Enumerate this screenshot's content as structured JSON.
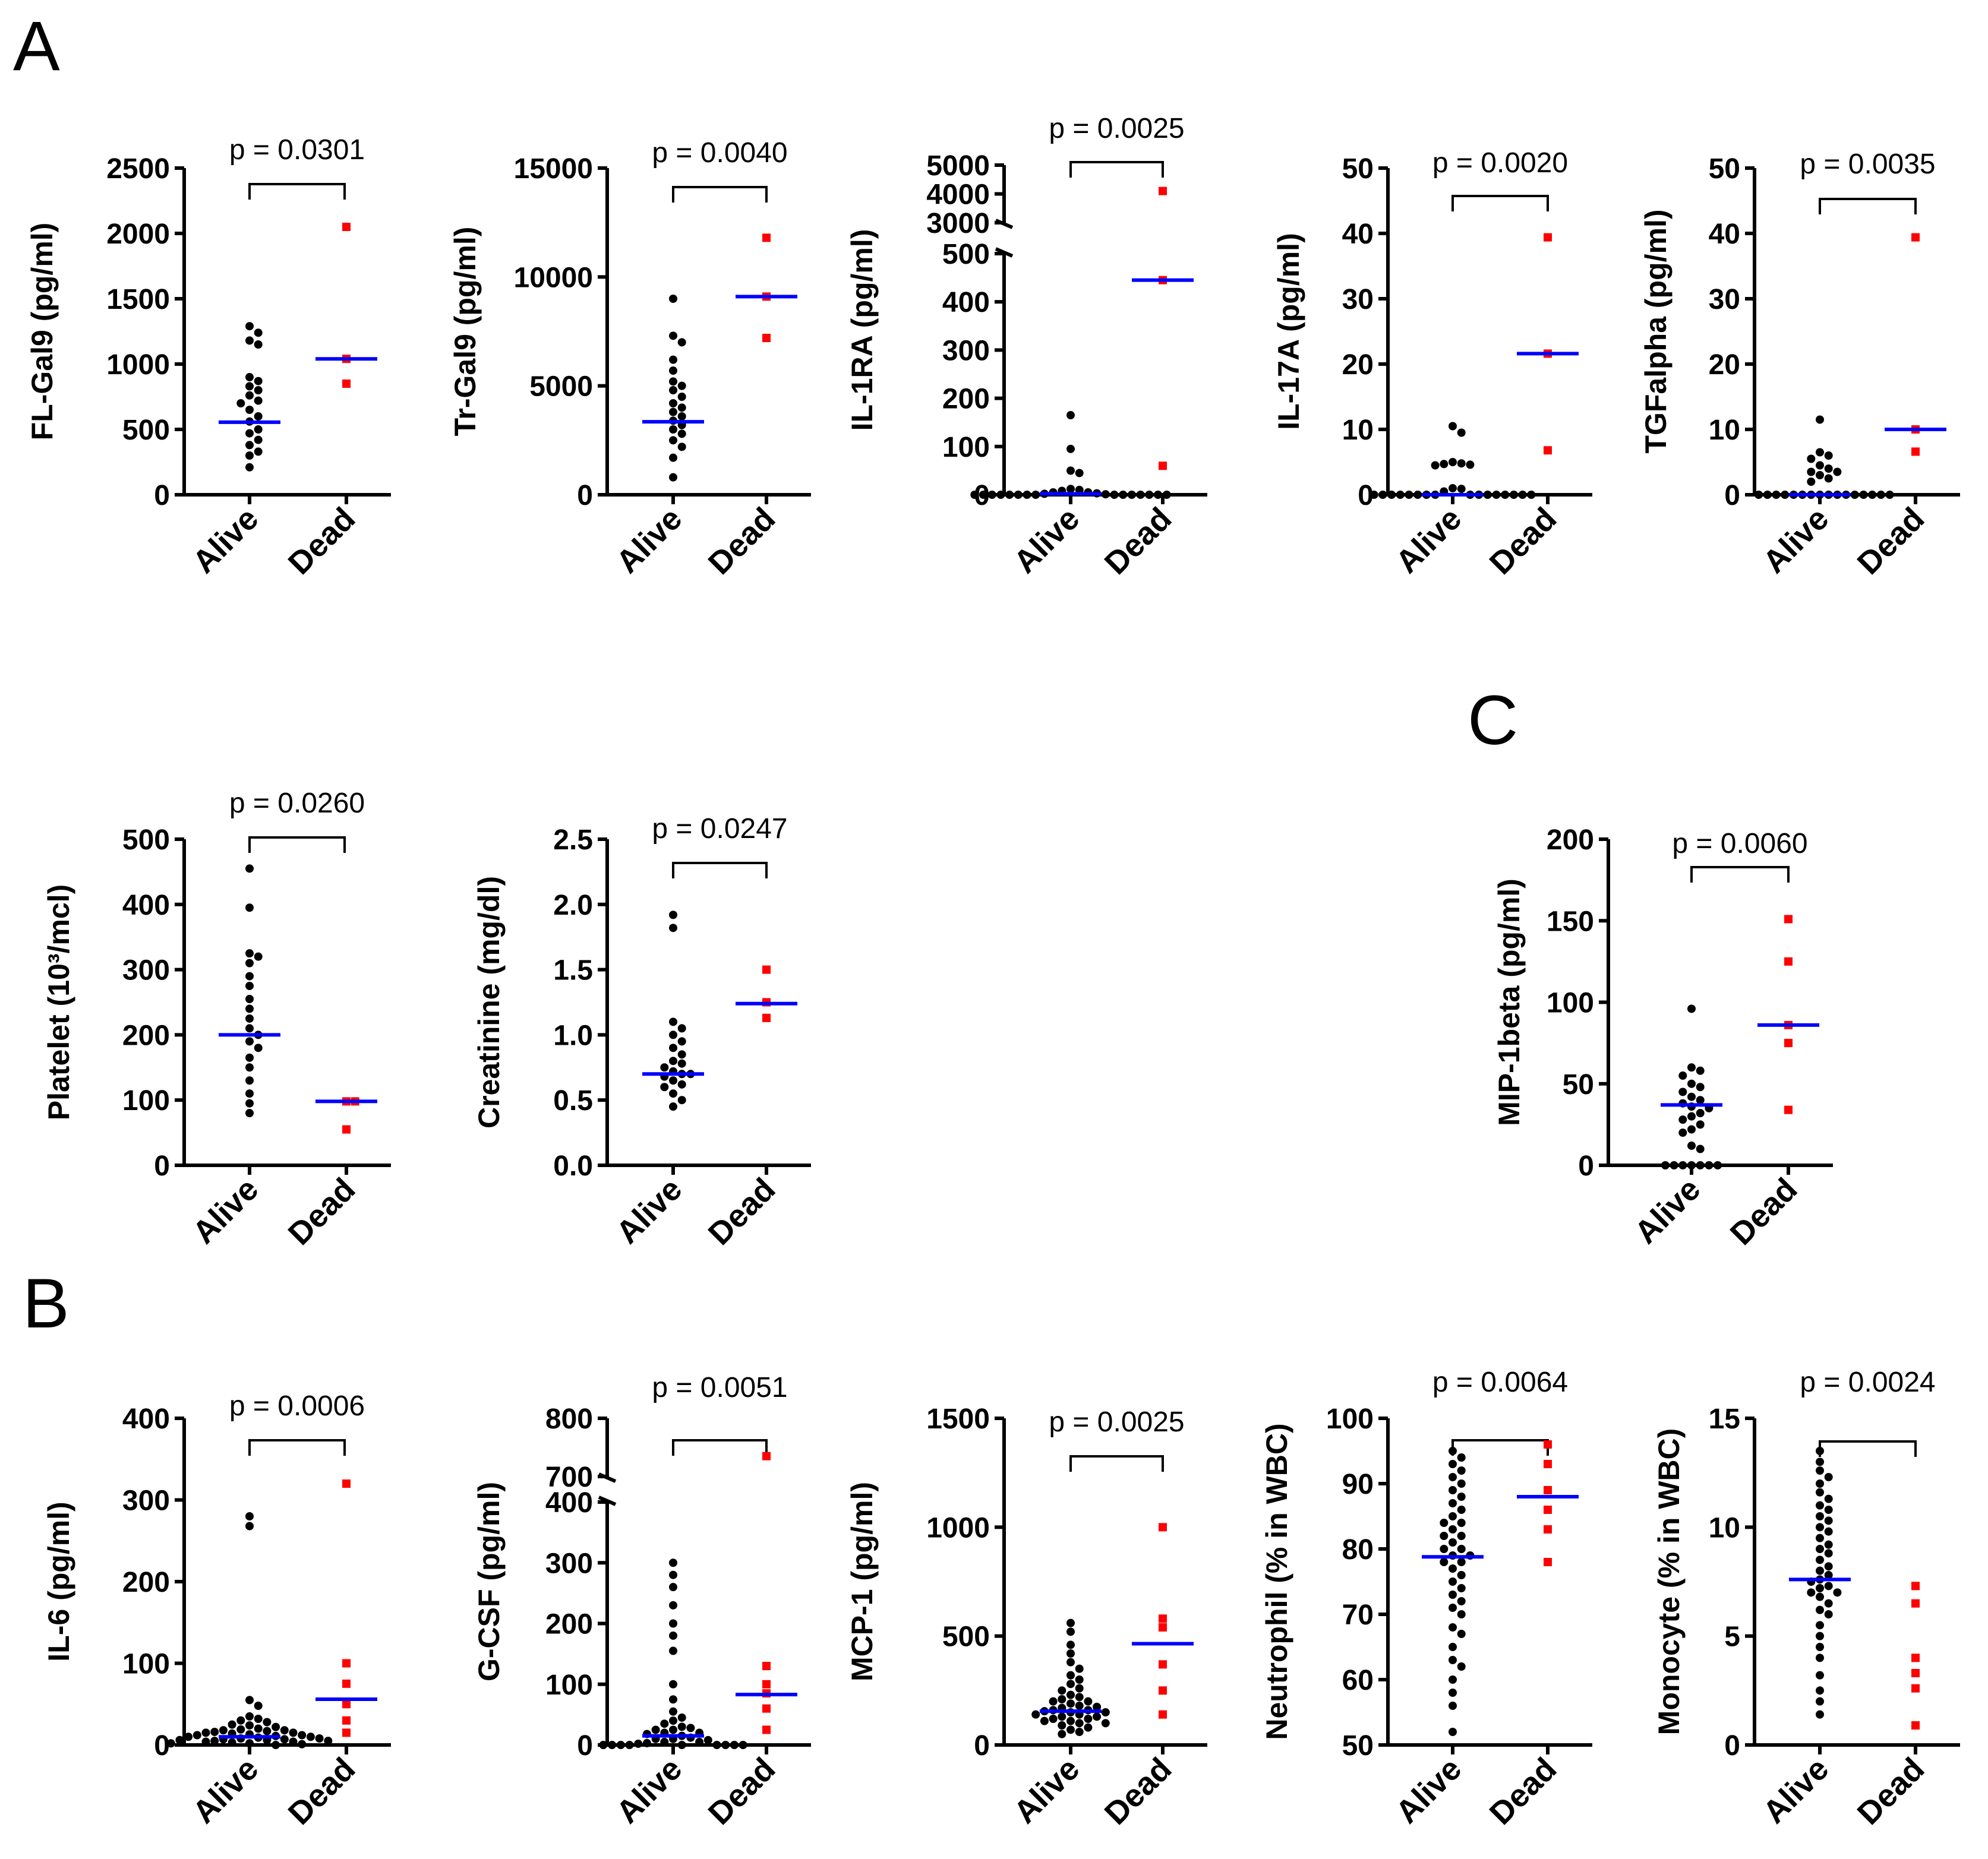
{
  "figure": {
    "panel_labels": [
      "A",
      "B",
      "C"
    ],
    "categories": [
      "Alive",
      "Dead"
    ],
    "colors": {
      "alive": "#000000",
      "dead": "#ff0000",
      "median": "#0000ff"
    }
  },
  "chart_data": [
    {
      "type": "scatter",
      "panel": "A",
      "ylabel": "FL-Gal9 (pg/ml)",
      "ylim": [
        0,
        2500
      ],
      "yticks": [
        0,
        500,
        1000,
        1500,
        2000,
        2500
      ],
      "p_text": "p = 0.0301",
      "alive": [
        210,
        300,
        330,
        380,
        420,
        470,
        500,
        560,
        600,
        650,
        700,
        720,
        760,
        800,
        830,
        870,
        900,
        1150,
        1180,
        1240,
        1290
      ],
      "dead": [
        850,
        1040,
        2050
      ],
      "median_alive": 555,
      "median_dead": 1040
    },
    {
      "type": "scatter",
      "panel": "A",
      "ylabel": "Tr-Gal9 (pg/ml)",
      "ylim": [
        0,
        15000
      ],
      "yticks": [
        0,
        5000,
        10000,
        15000
      ],
      "p_text": "p = 0.0040",
      "alive": [
        800,
        1700,
        2200,
        2500,
        2800,
        3000,
        3200,
        3400,
        3600,
        3800,
        4000,
        4200,
        4500,
        4800,
        5000,
        5200,
        5700,
        6200,
        7000,
        7300,
        9000
      ],
      "dead": [
        7200,
        9100,
        11800
      ],
      "median_alive": 3350,
      "median_dead": 9100
    },
    {
      "type": "scatter",
      "panel": "A",
      "ylabel": "IL-1RA (pg/ml)",
      "axis_break": {
        "lower": [
          0,
          500
        ],
        "upper": [
          3000,
          5000
        ]
      },
      "yticks": [
        0,
        100,
        200,
        300,
        400,
        500,
        3000,
        4000,
        5000
      ],
      "p_text": "p = 0.0025",
      "alive": [
        0,
        0,
        0,
        0,
        0,
        0,
        0,
        0,
        0,
        0,
        0,
        0,
        0,
        0,
        0,
        1,
        2,
        3,
        5,
        5,
        8,
        10,
        12,
        45,
        50,
        95,
        165
      ],
      "dead": [
        60,
        445,
        4100
      ],
      "median_alive": 2,
      "median_dead": 445
    },
    {
      "type": "scatter",
      "panel": "A",
      "ylabel": "IL-17A (pg/ml)",
      "ylim": [
        0,
        50
      ],
      "yticks": [
        0,
        10,
        20,
        30,
        40,
        50
      ],
      "p_text": "p = 0.0020",
      "alive": [
        0,
        0,
        0,
        0,
        0,
        0,
        0,
        0,
        0,
        0,
        0,
        0,
        0,
        0,
        0,
        0,
        0.5,
        0.9,
        1,
        4.5,
        4.6,
        4.7,
        4.8,
        5,
        9.5,
        10.5
      ],
      "dead": [
        6.8,
        21.6,
        39.4
      ],
      "median_alive": 0,
      "median_dead": 21.6
    },
    {
      "type": "scatter",
      "panel": "A",
      "ylabel": "TGFalpha (pg/ml)",
      "ylim": [
        0,
        50
      ],
      "yticks": [
        0,
        10,
        20,
        30,
        40,
        50
      ],
      "p_text": "p = 0.0035",
      "alive": [
        0,
        0,
        0,
        0,
        0,
        0,
        0,
        0,
        0,
        0,
        0,
        0,
        0,
        0,
        0,
        0,
        2,
        2.5,
        3,
        3.5,
        3.5,
        4,
        4.5,
        5.5,
        6,
        6.5,
        11.5
      ],
      "dead": [
        6.6,
        10,
        39.4
      ],
      "median_alive": 0,
      "median_dead": 10
    },
    {
      "type": "scatter",
      "panel": "A",
      "ylabel": "Platelet (10³/mcl)",
      "ylim": [
        0,
        500
      ],
      "yticks": [
        0,
        100,
        200,
        300,
        400,
        500
      ],
      "p_text": "p = 0.0260",
      "alive": [
        80,
        95,
        110,
        130,
        150,
        165,
        180,
        190,
        200,
        210,
        225,
        240,
        255,
        275,
        290,
        310,
        320,
        325,
        395,
        455
      ],
      "dead": [
        55,
        98,
        98
      ],
      "median_alive": 200,
      "median_dead": 98
    },
    {
      "type": "scatter",
      "panel": "A",
      "ylabel": "Creatinine (mg/dl)",
      "ylim": [
        0,
        2.5
      ],
      "yticks": [
        "0.0",
        "0.5",
        "1.0",
        "1.5",
        "2.0",
        "2.5"
      ],
      "p_text": "p = 0.0247",
      "alive": [
        0.45,
        0.5,
        0.55,
        0.6,
        0.62,
        0.65,
        0.68,
        0.7,
        0.7,
        0.72,
        0.75,
        0.78,
        0.8,
        0.85,
        0.9,
        0.95,
        1.0,
        1.05,
        1.1,
        1.82,
        1.92
      ],
      "dead": [
        1.13,
        1.25,
        1.5
      ],
      "median_alive": 0.7,
      "median_dead": 1.24
    },
    {
      "type": "scatter",
      "panel": "C",
      "ylabel": "MIP-1beta (pg/ml)",
      "ylim": [
        0,
        200
      ],
      "yticks": [
        0,
        50,
        100,
        150,
        200
      ],
      "p_text": "p = 0.0060",
      "alive": [
        0,
        0,
        0,
        0,
        0,
        0,
        0,
        10,
        12,
        20,
        22,
        25,
        28,
        30,
        32,
        35,
        36,
        38,
        40,
        42,
        45,
        48,
        50,
        55,
        58,
        60,
        96
      ],
      "dead": [
        34,
        75,
        86,
        125,
        151
      ],
      "median_alive": 37,
      "median_dead": 86
    },
    {
      "type": "scatter",
      "panel": "B",
      "ylabel": "IL-6 (pg/ml)",
      "ylim": [
        0,
        400
      ],
      "yticks": [
        0,
        100,
        200,
        300,
        400
      ],
      "p_text": "p = 0.0006",
      "alive": [
        0,
        1,
        2,
        2,
        3,
        4,
        4,
        5,
        5,
        6,
        6,
        7,
        7,
        8,
        8,
        9,
        10,
        10,
        11,
        12,
        12,
        13,
        14,
        15,
        15,
        16,
        17,
        18,
        18,
        19,
        20,
        22,
        24,
        25,
        28,
        30,
        32,
        35,
        48,
        55,
        268,
        280
      ],
      "dead": [
        15,
        30,
        50,
        75,
        100,
        320
      ],
      "median_alive": 10,
      "median_dead": 56
    },
    {
      "type": "scatter",
      "panel": "B",
      "ylabel": "G-CSF (pg/ml)",
      "axis_break": {
        "lower": [
          0,
          400
        ],
        "upper": [
          700,
          800
        ]
      },
      "yticks": [
        0,
        100,
        200,
        300,
        400,
        700,
        800
      ],
      "p_text": "p = 0.0051",
      "alive": [
        0,
        0,
        0,
        0,
        0,
        0,
        0,
        0,
        0,
        2,
        3,
        5,
        5,
        8,
        10,
        10,
        12,
        15,
        18,
        20,
        20,
        25,
        25,
        28,
        30,
        35,
        40,
        45,
        55,
        75,
        100,
        155,
        180,
        200,
        230,
        260,
        280,
        300
      ],
      "dead": [
        25,
        60,
        85,
        100,
        130,
        735
      ],
      "median_alive": 15,
      "median_dead": 83
    },
    {
      "type": "scatter",
      "panel": "B",
      "ylabel": "MCP-1 (pg/ml)",
      "ylim": [
        0,
        1500
      ],
      "yticks": [
        0,
        500,
        1000,
        1500
      ],
      "p_text": "p = 0.0025",
      "alive": [
        50,
        60,
        70,
        80,
        90,
        100,
        100,
        110,
        110,
        120,
        120,
        130,
        130,
        140,
        140,
        150,
        150,
        155,
        160,
        160,
        170,
        175,
        180,
        190,
        200,
        200,
        210,
        220,
        230,
        250,
        260,
        280,
        300,
        320,
        350,
        380,
        420,
        460,
        520,
        560
      ],
      "dead": [
        140,
        250,
        370,
        540,
        580,
        1000
      ],
      "median_alive": 155,
      "median_dead": 465
    },
    {
      "type": "scatter",
      "panel": "B",
      "ylabel": "Neutrophil (% in WBC)",
      "ylim": [
        50,
        100
      ],
      "yticks": [
        50,
        60,
        70,
        80,
        90,
        100
      ],
      "p_text": "p = 0.0064",
      "alive": [
        52,
        56,
        58,
        60,
        62,
        63,
        65,
        67,
        68,
        70,
        71,
        72,
        73,
        74,
        75,
        76,
        77,
        78,
        78,
        79,
        79,
        80,
        80,
        81,
        82,
        82,
        83,
        84,
        84,
        85,
        86,
        87,
        88,
        89,
        90,
        91,
        92,
        93,
        94,
        95
      ],
      "dead": [
        78,
        83,
        86,
        89,
        93,
        96
      ],
      "median_alive": 78.8,
      "median_dead": 88
    },
    {
      "type": "scatter",
      "panel": "B",
      "ylabel": "Monocyte (% in WBC)",
      "ylim": [
        0,
        15
      ],
      "yticks": [
        0,
        5,
        10,
        15
      ],
      "p_text": "p = 0.0024",
      "alive": [
        1.4,
        2,
        2.5,
        3.2,
        4,
        4.5,
        5,
        5.5,
        6,
        6.2,
        6.5,
        6.8,
        7,
        7,
        7.2,
        7.3,
        7.5,
        7.6,
        7.8,
        8,
        8.2,
        8.5,
        8.8,
        9,
        9.2,
        9.5,
        9.8,
        10,
        10.3,
        10.5,
        10.8,
        11,
        11.3,
        11.6,
        12,
        12.3,
        12.6,
        13,
        13.5
      ],
      "dead": [
        0.9,
        2.6,
        3.3,
        4,
        6.5,
        7.3
      ],
      "median_alive": 7.6,
      "median_dead": null
    }
  ]
}
